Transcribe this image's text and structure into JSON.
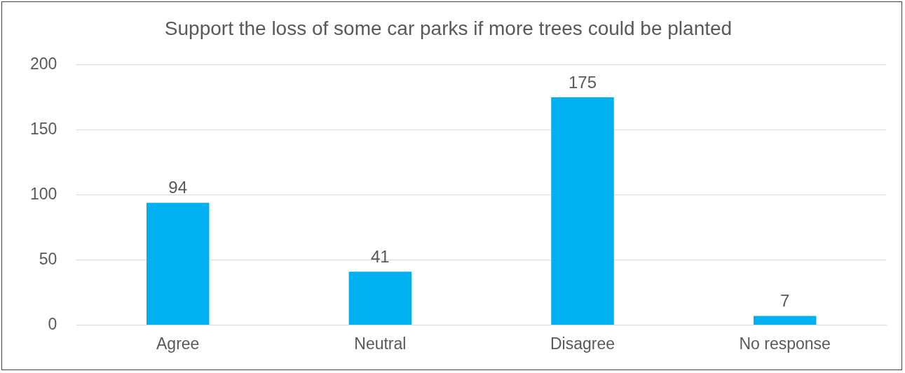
{
  "chart_data": {
    "type": "bar",
    "title": "Support the loss of some car parks if more trees could be planted",
    "categories": [
      "Agree",
      "Neutral",
      "Disagree",
      "No response"
    ],
    "values": [
      94,
      41,
      175,
      7
    ],
    "color": "#00b0f0",
    "ylim": [
      0,
      200
    ],
    "yticks": [
      0,
      50,
      100,
      150,
      200
    ],
    "grid": "y",
    "data_labels": true
  }
}
